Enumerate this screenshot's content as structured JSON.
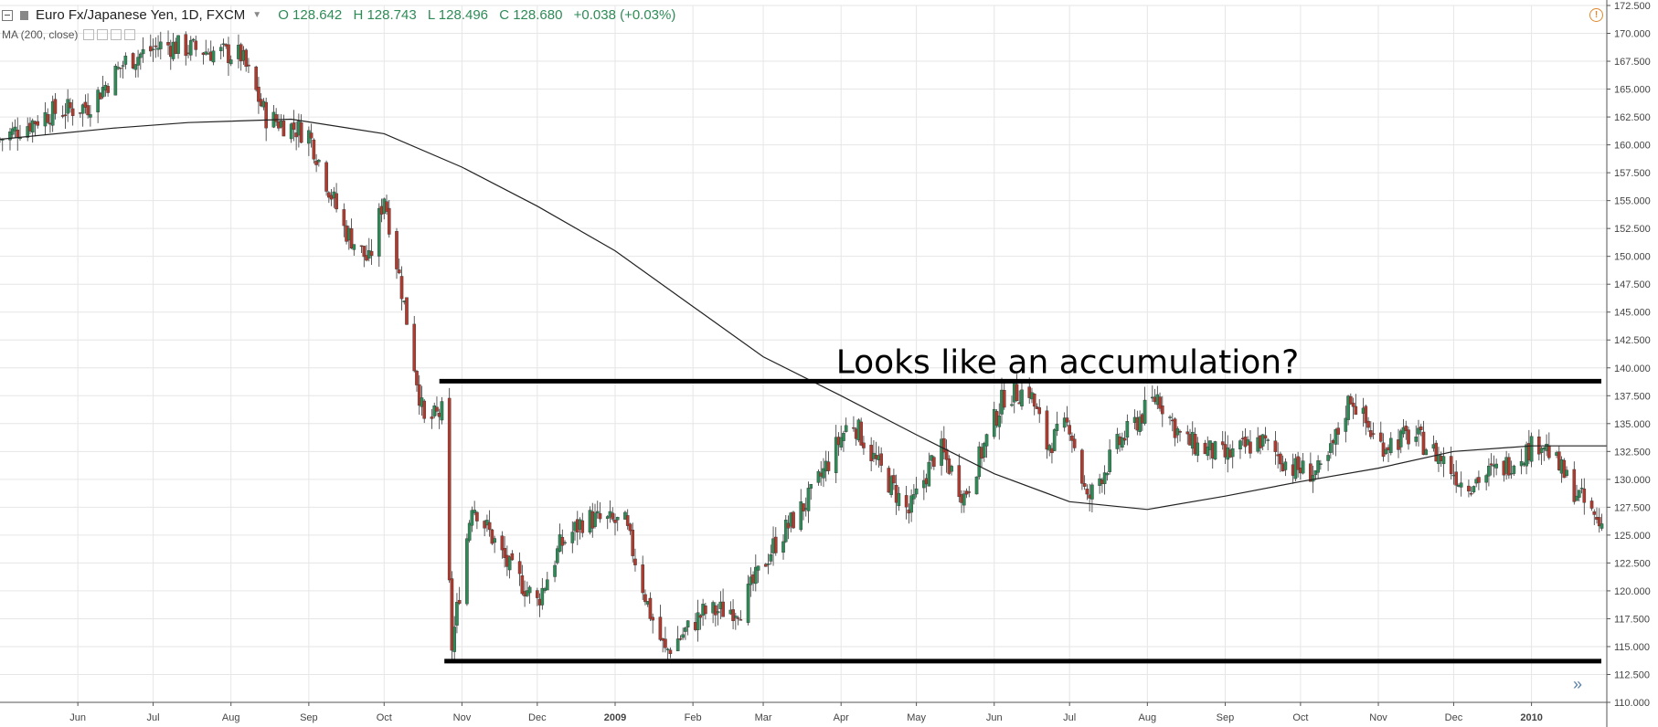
{
  "legend": {
    "symbol": "Euro Fx/Japanese Yen, 1D, FXCM",
    "open": "O 128.642",
    "high": "H 128.743",
    "low": "L 128.496",
    "close": "C 128.680",
    "change": "+0.038 (+0.03%)"
  },
  "indicator": {
    "label": "MA (200, close)"
  },
  "annotation": "Looks like an accumulation?",
  "icons": {
    "warning": "!",
    "scroll_right": "»"
  },
  "colors": {
    "up": "#2e8b57",
    "down": "#b03a2e",
    "ma_line": "#222222",
    "horizontal_lines": "#000000",
    "grid": "#e6e6e6"
  },
  "chart_data": {
    "type": "candlestick",
    "title": "Euro Fx/Japanese Yen, 1D, FXCM",
    "y_axis": {
      "side": "right",
      "range": [
        110,
        172.5
      ],
      "tick_step": 2.5,
      "ticks": [
        "110.000",
        "112.500",
        "115.000",
        "117.500",
        "120.000",
        "122.500",
        "125.000",
        "127.500",
        "130.000",
        "132.500",
        "135.000",
        "137.500",
        "140.000",
        "142.500",
        "145.000",
        "147.500",
        "150.000",
        "152.500",
        "155.000",
        "157.500",
        "160.000",
        "162.500",
        "165.000",
        "167.500",
        "170.000",
        "172.500"
      ]
    },
    "x_axis": {
      "range": [
        "2008-05-01",
        "2010-01-31"
      ],
      "ticks": [
        {
          "date": "2008-06-01",
          "label": "Jun"
        },
        {
          "date": "2008-07-01",
          "label": "Jul"
        },
        {
          "date": "2008-08-01",
          "label": "Aug"
        },
        {
          "date": "2008-09-01",
          "label": "Sep"
        },
        {
          "date": "2008-10-01",
          "label": "Oct"
        },
        {
          "date": "2008-11-01",
          "label": "Nov"
        },
        {
          "date": "2008-12-01",
          "label": "Dec"
        },
        {
          "date": "2009-01-01",
          "label": "2009"
        },
        {
          "date": "2009-02-01",
          "label": "Feb"
        },
        {
          "date": "2009-03-01",
          "label": "Mar"
        },
        {
          "date": "2009-04-01",
          "label": "Apr"
        },
        {
          "date": "2009-05-01",
          "label": "May"
        },
        {
          "date": "2009-06-01",
          "label": "Jun"
        },
        {
          "date": "2009-07-01",
          "label": "Jul"
        },
        {
          "date": "2009-08-01",
          "label": "Aug"
        },
        {
          "date": "2009-09-01",
          "label": "Sep"
        },
        {
          "date": "2009-10-01",
          "label": "Oct"
        },
        {
          "date": "2009-11-01",
          "label": "Nov"
        },
        {
          "date": "2009-12-01",
          "label": "Dec"
        },
        {
          "date": "2010-01-01",
          "label": "2010"
        }
      ]
    },
    "close_path": [
      {
        "date": "2008-05-01",
        "close": 160.5
      },
      {
        "date": "2008-05-20",
        "close": 162.8
      },
      {
        "date": "2008-06-05",
        "close": 163.5
      },
      {
        "date": "2008-06-20",
        "close": 167.5
      },
      {
        "date": "2008-07-05",
        "close": 169.0
      },
      {
        "date": "2008-07-20",
        "close": 168.5
      },
      {
        "date": "2008-08-05",
        "close": 168.0
      },
      {
        "date": "2008-08-15",
        "close": 162.5
      },
      {
        "date": "2008-09-01",
        "close": 161.0
      },
      {
        "date": "2008-09-15",
        "close": 152.5
      },
      {
        "date": "2008-09-25",
        "close": 149.5
      },
      {
        "date": "2008-10-01",
        "close": 155.5
      },
      {
        "date": "2008-10-08",
        "close": 147.0
      },
      {
        "date": "2008-10-17",
        "close": 135.0
      },
      {
        "date": "2008-10-24",
        "close": 136.0
      },
      {
        "date": "2008-10-28",
        "close": 115.0
      },
      {
        "date": "2008-11-05",
        "close": 128.0
      },
      {
        "date": "2008-11-20",
        "close": 122.0
      },
      {
        "date": "2008-12-01",
        "close": 119.0
      },
      {
        "date": "2008-12-10",
        "close": 124.0
      },
      {
        "date": "2008-12-20",
        "close": 126.5
      },
      {
        "date": "2009-01-05",
        "close": 126.0
      },
      {
        "date": "2009-01-15",
        "close": 118.0
      },
      {
        "date": "2009-01-21",
        "close": 114.5
      },
      {
        "date": "2009-02-05",
        "close": 118.0
      },
      {
        "date": "2009-02-20",
        "close": 118.5
      },
      {
        "date": "2009-03-05",
        "close": 124.0
      },
      {
        "date": "2009-03-20",
        "close": 128.5
      },
      {
        "date": "2009-04-05",
        "close": 135.5
      },
      {
        "date": "2009-04-15",
        "close": 131.5
      },
      {
        "date": "2009-04-28",
        "close": 127.0
      },
      {
        "date": "2009-05-10",
        "close": 133.0
      },
      {
        "date": "2009-05-20",
        "close": 128.5
      },
      {
        "date": "2009-06-05",
        "close": 137.5
      },
      {
        "date": "2009-06-15",
        "close": 138.0
      },
      {
        "date": "2009-06-22",
        "close": 133.0
      },
      {
        "date": "2009-07-01",
        "close": 135.0
      },
      {
        "date": "2009-07-08",
        "close": 128.0
      },
      {
        "date": "2009-07-20",
        "close": 133.0
      },
      {
        "date": "2009-08-05",
        "close": 137.5
      },
      {
        "date": "2009-08-15",
        "close": 133.5
      },
      {
        "date": "2009-09-01",
        "close": 132.0
      },
      {
        "date": "2009-09-15",
        "close": 133.5
      },
      {
        "date": "2009-09-28",
        "close": 131.0
      },
      {
        "date": "2009-10-10",
        "close": 130.5
      },
      {
        "date": "2009-10-21",
        "close": 137.5
      },
      {
        "date": "2009-11-01",
        "close": 133.0
      },
      {
        "date": "2009-11-15",
        "close": 134.0
      },
      {
        "date": "2009-11-28",
        "close": 131.5
      },
      {
        "date": "2009-12-05",
        "close": 129.5
      },
      {
        "date": "2009-12-20",
        "close": 131.0
      },
      {
        "date": "2010-01-05",
        "close": 133.5
      },
      {
        "date": "2010-01-15",
        "close": 130.0
      },
      {
        "date": "2010-01-28",
        "close": 126.0
      }
    ],
    "moving_average": {
      "name": "MA (200, close)",
      "points": [
        {
          "date": "2008-05-01",
          "value": 160.5
        },
        {
          "date": "2008-06-15",
          "value": 161.5
        },
        {
          "date": "2008-07-15",
          "value": 162.0
        },
        {
          "date": "2008-08-25",
          "value": 162.3
        },
        {
          "date": "2008-10-01",
          "value": 161.0
        },
        {
          "date": "2008-11-01",
          "value": 158.0
        },
        {
          "date": "2008-12-01",
          "value": 154.5
        },
        {
          "date": "2009-01-01",
          "value": 150.5
        },
        {
          "date": "2009-02-01",
          "value": 145.5
        },
        {
          "date": "2009-03-01",
          "value": 141.0
        },
        {
          "date": "2009-04-01",
          "value": 137.5
        },
        {
          "date": "2009-05-01",
          "value": 134.0
        },
        {
          "date": "2009-06-01",
          "value": 130.5
        },
        {
          "date": "2009-07-01",
          "value": 128.0
        },
        {
          "date": "2009-08-01",
          "value": 127.3
        },
        {
          "date": "2009-09-01",
          "value": 128.5
        },
        {
          "date": "2009-10-01",
          "value": 129.8
        },
        {
          "date": "2009-11-01",
          "value": 131.0
        },
        {
          "date": "2009-12-01",
          "value": 132.5
        },
        {
          "date": "2010-01-01",
          "value": 133.0
        },
        {
          "date": "2010-01-31",
          "value": 133.0
        }
      ]
    },
    "horizontal_lines": [
      {
        "value": 138.8,
        "from": "2008-10-23",
        "to": "2010-01-31"
      },
      {
        "value": 113.7,
        "from": "2008-10-25",
        "to": "2010-01-31"
      }
    ],
    "annotation": {
      "text": "Looks like an accumulation?",
      "date": "2009-03-30",
      "value": 140.5
    },
    "grid": true
  }
}
